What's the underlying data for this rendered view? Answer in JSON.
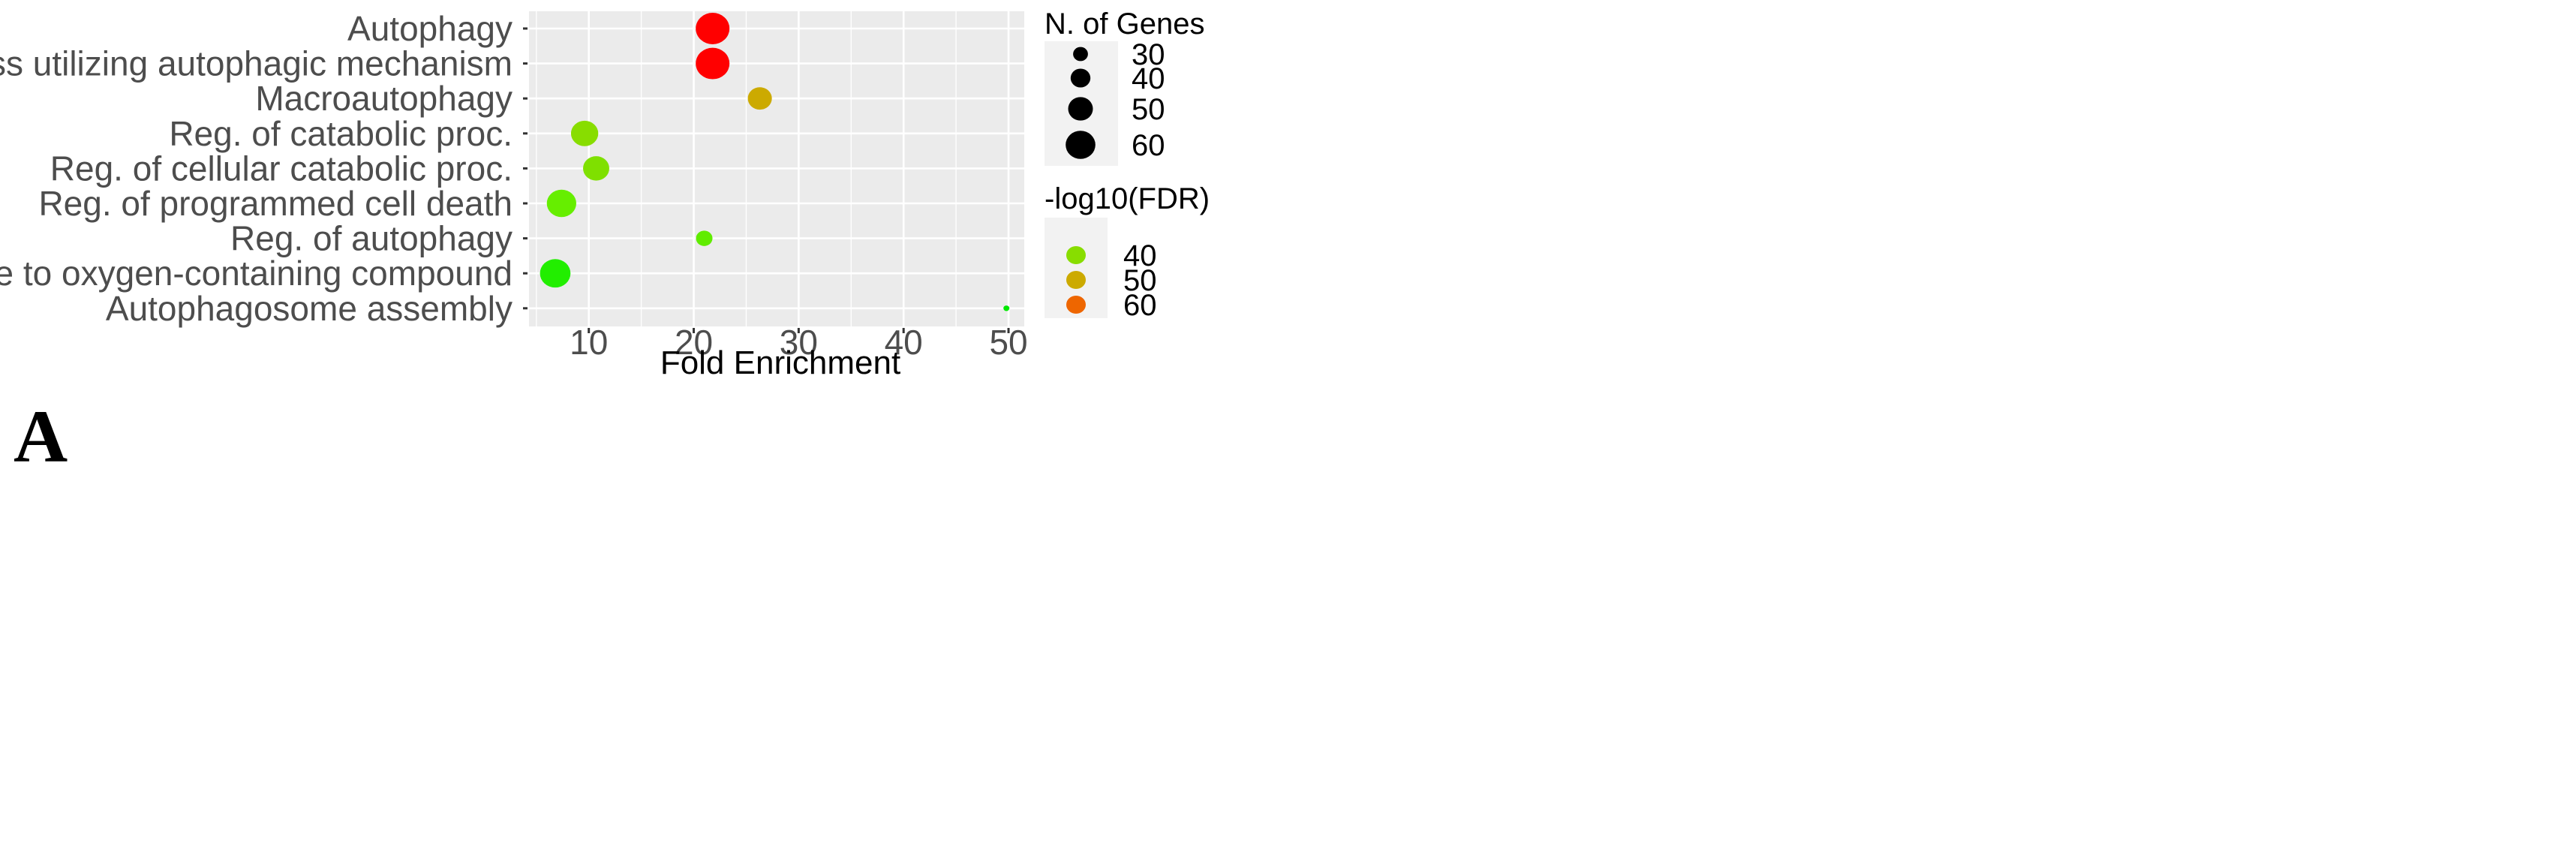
{
  "panel_label": "A",
  "chart_data": {
    "type": "scatter",
    "title": "",
    "xlabel": "Fold Enrichment",
    "ylabel": "",
    "xlim": [
      4.3,
      51.5
    ],
    "xticks": [
      10,
      20,
      30,
      40,
      50
    ],
    "categories": [
      "Autophagy",
      "Process utilizing autophagic mechanism",
      "Macroautophagy",
      "Reg. of catabolic proc.",
      "Reg. of cellular catabolic proc.",
      "Reg. of programmed cell death",
      "Reg. of autophagy",
      "Response to oxygen-containing compound",
      "Autophagosome assembly"
    ],
    "points": [
      {
        "term": "Autophagy",
        "fold_enrichment": 21.8,
        "n_genes": 62,
        "neg_log10_fdr": 64,
        "color": "#ff0000"
      },
      {
        "term": "Process utilizing autophagic mechanism",
        "fold_enrichment": 21.8,
        "n_genes": 62,
        "neg_log10_fdr": 64,
        "color": "#ff0000"
      },
      {
        "term": "Macroautophagy",
        "fold_enrichment": 26.3,
        "n_genes": 44,
        "neg_log10_fdr": 50,
        "color": "#ccaa00"
      },
      {
        "term": "Reg. of catabolic proc.",
        "fold_enrichment": 9.6,
        "n_genes": 50,
        "neg_log10_fdr": 40,
        "color": "#88dd00"
      },
      {
        "term": "Reg. of cellular catabolic proc.",
        "fold_enrichment": 10.7,
        "n_genes": 48,
        "neg_log10_fdr": 39,
        "color": "#7fe000"
      },
      {
        "term": "Reg. of programmed cell death",
        "fold_enrichment": 7.4,
        "n_genes": 54,
        "neg_log10_fdr": 37,
        "color": "#66ee00"
      },
      {
        "term": "Reg. of autophagy",
        "fold_enrichment": 21.0,
        "n_genes": 30,
        "neg_log10_fdr": 38,
        "color": "#60ec00"
      },
      {
        "term": "Response to oxygen-containing compound",
        "fold_enrichment": 6.8,
        "n_genes": 56,
        "neg_log10_fdr": 33,
        "color": "#22ee00"
      },
      {
        "term": "Autophagosome assembly",
        "fold_enrichment": 49.8,
        "n_genes": 8,
        "neg_log10_fdr": 30,
        "color": "#00e800"
      }
    ],
    "size_legend": {
      "title": "N. of Genes",
      "entries": [
        {
          "label": "30",
          "value": 30
        },
        {
          "label": "40",
          "value": 40
        },
        {
          "label": "50",
          "value": 50
        },
        {
          "label": "60",
          "value": 60
        }
      ]
    },
    "color_legend": {
      "title": "-log10(FDR)",
      "entries": [
        {
          "label": "40",
          "color": "#88dd00"
        },
        {
          "label": "50",
          "color": "#ccaa00"
        },
        {
          "label": "60",
          "color": "#ee6600"
        }
      ]
    },
    "grid": true,
    "panel_background": "#ebebeb",
    "grid_color": "#ffffff"
  }
}
